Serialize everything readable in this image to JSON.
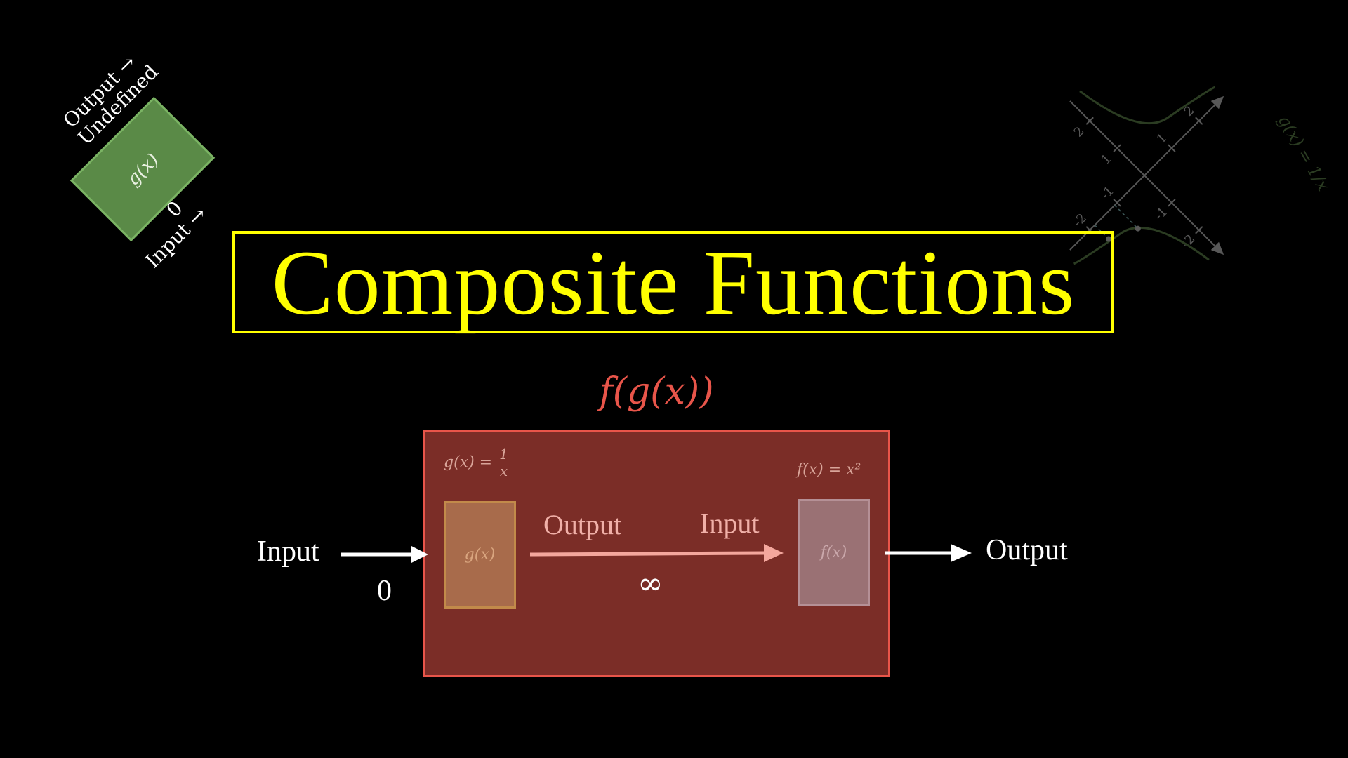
{
  "title": "Composite Functions",
  "composite": {
    "label": "f(g(x))",
    "g_formula": {
      "lhs": "g(x) =",
      "num": "1",
      "den": "x"
    },
    "f_formula": "f(x) = x²",
    "g_box_label": "g(x)",
    "f_box_label": "f(x)",
    "input_label": "Input",
    "input_value": "0",
    "output_label": "Output",
    "mid_output_label": "Output",
    "mid_input_label": "Input",
    "mid_value": "∞"
  },
  "tilted_machine": {
    "box_label": "g(x)",
    "input_label": "Input →",
    "input_value": "0",
    "output_label": "Output →",
    "output_value": "Undefined"
  },
  "graph": {
    "function_label": "g(x) = 1/x",
    "x_ticks": [
      "-2",
      "-1",
      "1",
      "2"
    ],
    "y_ticks": [
      "-2",
      "-1",
      "1",
      "2"
    ]
  },
  "colors": {
    "title": "#ffff00",
    "composite_border": "#e8554a",
    "composite_fill": "#7b2d27",
    "g_box": "#a86b4b",
    "f_box": "#9a7174",
    "tilted_box": "#5a8a47",
    "graph": "#4f6e3e"
  }
}
